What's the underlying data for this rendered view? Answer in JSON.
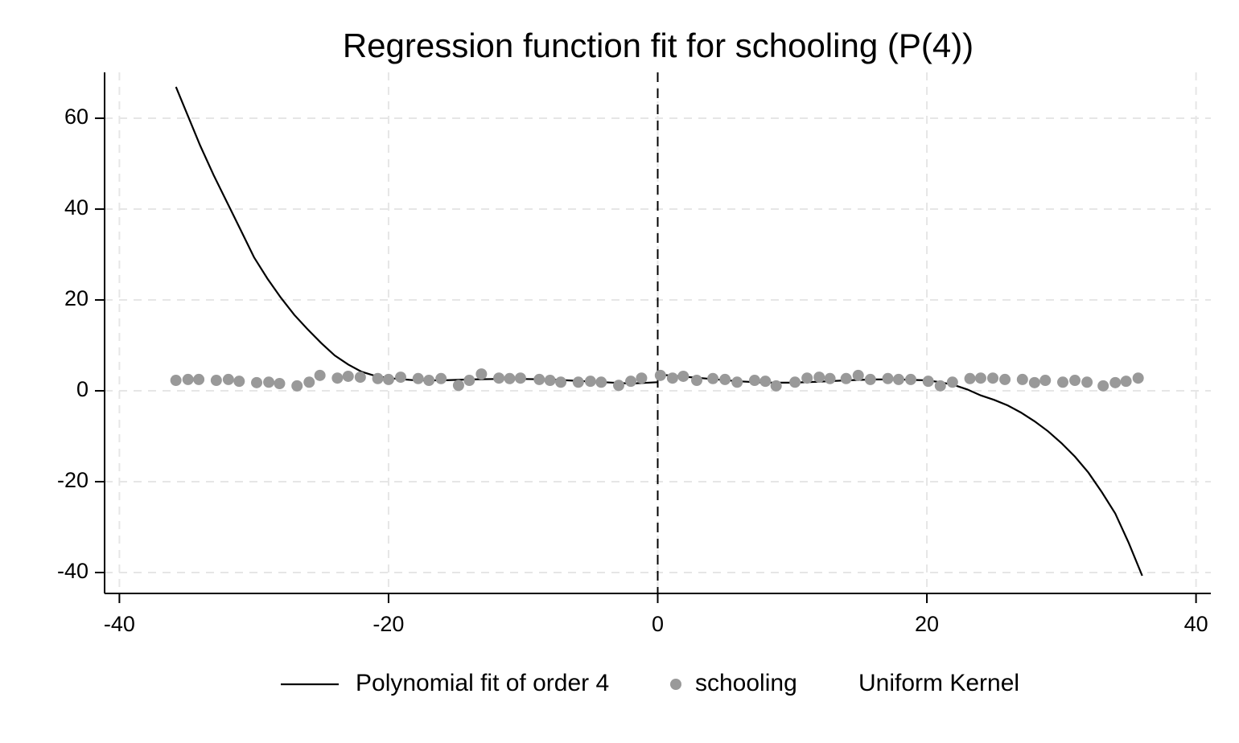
{
  "chart_data": {
    "type": "scatter",
    "title": "Regression function fit for schooling (P(4))",
    "xlim": [
      -41.1,
      41.1
    ],
    "ylim": [
      -44.6,
      70.1
    ],
    "xticks": [
      -40,
      -20,
      0,
      20,
      40
    ],
    "yticks": [
      -40,
      -20,
      0,
      20,
      40,
      60
    ],
    "grid": true,
    "vline": 0,
    "legend_position": "bottom",
    "legend_note": "Uniform Kernel",
    "series": [
      {
        "name": "Polynomial fit of order 4",
        "type": "line",
        "color": "#000000",
        "x": [
          -35.8,
          -34,
          -33,
          -32,
          -31,
          -30,
          -29,
          -28,
          -27,
          -26,
          -25,
          -24,
          -23,
          -22,
          -21,
          -20,
          -18,
          -16,
          -14,
          -12,
          -10,
          -8,
          -6,
          -4,
          -2,
          0,
          0,
          0,
          2,
          4,
          6,
          8,
          10,
          12,
          14,
          16,
          18,
          20,
          21,
          22,
          23,
          24,
          25,
          26,
          27,
          28,
          29,
          30,
          31,
          32,
          33,
          34,
          35,
          36
        ],
        "values": [
          66.9,
          54,
          47.5,
          41.5,
          35.5,
          29.4,
          24.7,
          20.5,
          16.7,
          13.5,
          10.5,
          7.8,
          5.8,
          4.2,
          3.3,
          2.8,
          2.3,
          2.3,
          2.5,
          2.6,
          2.6,
          2.5,
          2.2,
          1.9,
          1.6,
          1.9,
          null,
          3.6,
          3.1,
          2.6,
          2.1,
          1.8,
          1.8,
          2.0,
          2.3,
          2.5,
          2.5,
          2.3,
          1.9,
          1.3,
          0.3,
          -1.0,
          -2.0,
          -3.2,
          -4.8,
          -6.7,
          -8.9,
          -11.5,
          -14.5,
          -18,
          -22.3,
          -27,
          -33.5,
          -40.7
        ]
      },
      {
        "name": "schooling",
        "type": "scatter",
        "color": "#999999",
        "x": [
          -35.8,
          -34.9,
          -34.1,
          -32.8,
          -31.9,
          -31.1,
          -29.8,
          -28.9,
          -28.1,
          -26.8,
          -25.9,
          -25.1,
          -23.8,
          -23.0,
          -22.1,
          -20.8,
          -20.0,
          -19.1,
          -17.8,
          -17.0,
          -16.1,
          -14.8,
          -14.0,
          -13.1,
          -11.8,
          -11.0,
          -10.2,
          -8.8,
          -8.0,
          -7.2,
          -5.9,
          -5.0,
          -4.2,
          -2.9,
          -2.0,
          -1.2,
          0.2,
          1.1,
          1.9,
          2.9,
          4.1,
          5.0,
          5.9,
          7.2,
          8.0,
          8.8,
          10.2,
          11.1,
          12.0,
          12.8,
          14.0,
          14.9,
          15.8,
          17.1,
          17.9,
          18.8,
          20.1,
          21.0,
          21.9,
          23.2,
          24.0,
          24.9,
          25.8,
          27.1,
          28.0,
          28.8,
          30.1,
          31.0,
          31.9,
          33.1,
          34.0,
          34.8,
          35.7
        ],
        "values": [
          2.3,
          2.5,
          2.5,
          2.3,
          2.5,
          2.1,
          1.8,
          1.9,
          1.6,
          1.1,
          1.9,
          3.4,
          2.8,
          3.2,
          3.0,
          2.7,
          2.5,
          3.0,
          2.7,
          2.3,
          2.7,
          1.2,
          2.3,
          3.7,
          2.8,
          2.7,
          2.8,
          2.5,
          2.3,
          1.9,
          1.9,
          2.1,
          1.9,
          1.2,
          2.1,
          2.8,
          3.4,
          2.8,
          3.2,
          2.3,
          2.7,
          2.5,
          1.9,
          2.3,
          2.1,
          1.1,
          1.9,
          2.8,
          3.0,
          2.7,
          2.7,
          3.4,
          2.5,
          2.7,
          2.5,
          2.5,
          2.1,
          1.1,
          1.9,
          2.7,
          2.8,
          2.8,
          2.5,
          2.5,
          1.8,
          2.3,
          1.9,
          2.3,
          1.9,
          1.1,
          1.8,
          2.1,
          2.8
        ]
      }
    ]
  }
}
